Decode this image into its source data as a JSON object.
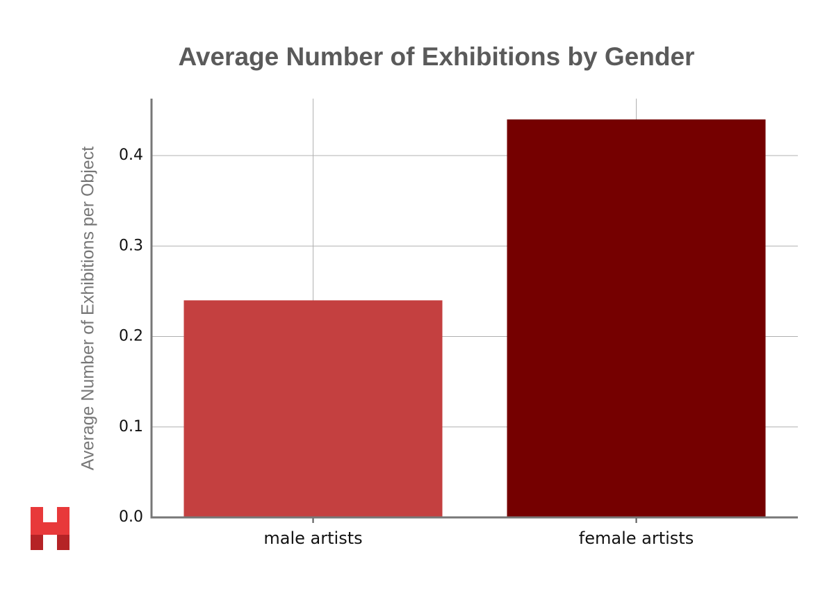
{
  "chart_data": {
    "type": "bar",
    "title": "Average Number of Exhibitions by Gender",
    "y_label": "Average Number of Exhibitions per Object",
    "categories": [
      "male artists",
      "female artists"
    ],
    "values": [
      0.24,
      0.44
    ],
    "colors": [
      "#c44040",
      "#750000"
    ],
    "ylim": [
      0,
      0.463
    ],
    "yticks": [
      {
        "value": 0,
        "label": "0.0"
      },
      0.1,
      0.2,
      0.3,
      0.4
    ],
    "grid": true
  }
}
